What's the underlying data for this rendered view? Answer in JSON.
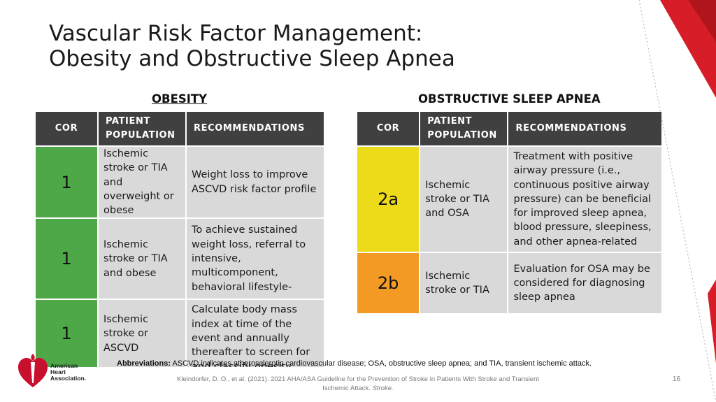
{
  "slide": {
    "title_line1": "Vascular Risk Factor Management:",
    "title_line2": "Obesity and Obstructive Sleep Apnea",
    "page_number": "16",
    "abbreviations_label": "Abbreviations:",
    "abbreviations_text": "ASCVD indicates atherosclerotic cardiovascular disease; OSA, obstructive sleep apnea; and TIA, transient ischemic attack.",
    "citation_line1": "Kleindorfer, D. O., et al. (2021).  2021 AHA/ASA Guideline for the Prevention of Stroke in Patients With Stroke and Transient",
    "citation_line2_plain": "Ischemic Attack.  ",
    "citation_line2_italic": "Stroke."
  },
  "logo": {
    "line1": "American",
    "line2": "Heart",
    "line3": "Association."
  },
  "headers": {
    "cor": "COR",
    "population": "PATIENT POPULATION",
    "recommendations": "RECOMMENDATIONS"
  },
  "obesity": {
    "heading": "OBESITY",
    "rows": [
      {
        "cor": "1",
        "population": "Ischemic stroke or TIA and overweight or obese",
        "recommendation": "Weight loss to improve ASCVD risk factor profile"
      },
      {
        "cor": "1",
        "population": "Ischemic stroke or TIA and obese",
        "recommendation": "To achieve sustained weight loss, referral to intensive, multicomponent, behavioral lifestyle-modification program"
      },
      {
        "cor": "1",
        "population": "Ischemic stroke or ASCVD",
        "recommendation": "Calculate body mass index at time of the event and annually thereafter to screen for and classify obesity"
      }
    ]
  },
  "osa": {
    "heading": "OBSTRUCTIVE SLEEP APNEA",
    "rows": [
      {
        "cor": "2a",
        "population": "Ischemic stroke or TIA and OSA",
        "recommendation": "Treatment with positive airway pressure (i.e., continuous positive airway pressure) can be beneficial for improved sleep apnea, blood pressure, sleepiness, and other apnea-related"
      },
      {
        "cor": "2b",
        "population": "Ischemic stroke or TIA",
        "recommendation": "Evaluation for OSA may be considered for diagnosing sleep apnea"
      }
    ]
  },
  "colors": {
    "cor_1": "#4ea848",
    "cor_2a": "#eddb1a",
    "cor_2b": "#f39a24",
    "header_bg": "#404040",
    "cell_bg": "#d9d9d9",
    "accent_red": "#e3242b"
  }
}
